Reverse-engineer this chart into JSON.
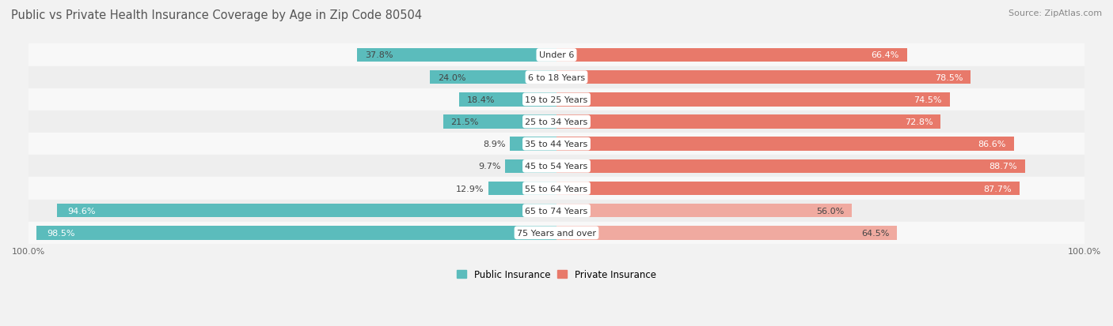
{
  "title": "Public vs Private Health Insurance Coverage by Age in Zip Code 80504",
  "source": "Source: ZipAtlas.com",
  "categories": [
    "Under 6",
    "6 to 18 Years",
    "19 to 25 Years",
    "25 to 34 Years",
    "35 to 44 Years",
    "45 to 54 Years",
    "55 to 64 Years",
    "65 to 74 Years",
    "75 Years and over"
  ],
  "public_values": [
    37.8,
    24.0,
    18.4,
    21.5,
    8.9,
    9.7,
    12.9,
    94.6,
    98.5
  ],
  "private_values": [
    66.4,
    78.5,
    74.5,
    72.8,
    86.6,
    88.7,
    87.7,
    56.0,
    64.5
  ],
  "public_color_normal": "#5bbcbc",
  "public_color_solid": "#3aadad",
  "private_color_normal": "#e8796a",
  "private_color_light": "#f0aaa0",
  "background_color": "#f2f2f2",
  "row_colors": [
    "#f8f8f8",
    "#eeeeee"
  ],
  "title_color": "#555555",
  "source_color": "#888888",
  "label_color_dark": "#444444",
  "label_color_white": "#ffffff",
  "title_fontsize": 10.5,
  "source_fontsize": 8,
  "bar_label_fontsize": 8,
  "cat_label_fontsize": 8,
  "bar_height": 0.62,
  "max_value": 100.0,
  "axis_label": "100.0%"
}
